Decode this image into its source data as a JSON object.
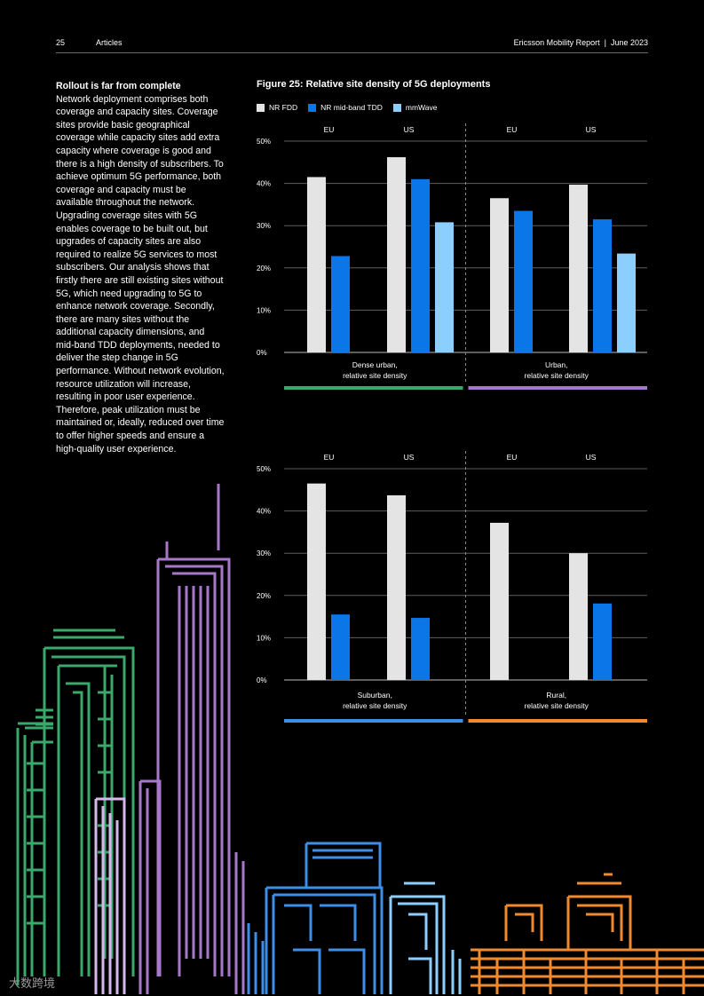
{
  "header": {
    "page_number": "25",
    "section": "Articles",
    "report": "Ericsson Mobility Report  |  June 2023"
  },
  "article": {
    "heading": "Rollout is far from complete",
    "body": "Network deployment comprises both coverage and capacity sites. Coverage sites provide basic geographical coverage while capacity sites add extra capacity where coverage is good and there is a high density of subscribers. To achieve optimum 5G performance, both coverage and capacity must be available throughout the network. Upgrading coverage sites with 5G enables coverage to be built out, but upgrades of capacity sites are also required to realize 5G services to most subscribers. Our analysis shows that firstly there are still existing sites without 5G, which need upgrading to 5G to enhance network coverage. Secondly, there are many sites without the additional capacity dimensions, and mid-band TDD deployments, needed to deliver the step change in 5G performance. Without network evolution, resource utilization will increase, resulting in poor user experience. Therefore, peak utilization must be maintained or, ideally, reduced over time to offer higher speeds and ensure a high-quality user experience."
  },
  "figure": {
    "title": "Figure 25: Relative site density of 5G deployments"
  },
  "legend": [
    {
      "label": "NR FDD",
      "color": "#e4e4e4"
    },
    {
      "label": "NR mid-band TDD",
      "color": "#0a76e8"
    },
    {
      "label": "mmWave",
      "color": "#8ccfff"
    }
  ],
  "chart_data": [
    {
      "type": "bar",
      "y_ticks": [
        "0%",
        "10%",
        "20%",
        "30%",
        "40%",
        "50%"
      ],
      "ylim": [
        0,
        50
      ],
      "panels": [
        {
          "category_label": [
            "Dense urban,",
            "relative site density"
          ],
          "underline_color": "#3aa86b",
          "groups": [
            {
              "name": "EU",
              "values": [
                41.5,
                22.8,
                null
              ]
            },
            {
              "name": "US",
              "values": [
                46.2,
                41.0,
                30.8
              ]
            }
          ]
        },
        {
          "category_label": [
            "Urban,",
            "relative site density"
          ],
          "underline_color": "#a777c9",
          "groups": [
            {
              "name": "EU",
              "values": [
                36.5,
                33.5,
                null
              ]
            },
            {
              "name": "US",
              "values": [
                39.7,
                31.5,
                23.4
              ]
            }
          ]
        }
      ]
    },
    {
      "type": "bar",
      "y_ticks": [
        "0%",
        "10%",
        "20%",
        "30%",
        "40%",
        "50%"
      ],
      "ylim": [
        0,
        50
      ],
      "panels": [
        {
          "category_label": [
            "Suburban,",
            "relative site density"
          ],
          "underline_color": "#3e8ee8",
          "groups": [
            {
              "name": "EU",
              "values": [
                46.5,
                15.5,
                null
              ]
            },
            {
              "name": "US",
              "values": [
                43.7,
                14.7,
                null
              ]
            }
          ]
        },
        {
          "category_label": [
            "Rural,",
            "relative site density"
          ],
          "underline_color": "#f08a2c",
          "groups": [
            {
              "name": "EU",
              "values": [
                37.2,
                null,
                null
              ]
            },
            {
              "name": "US",
              "values": [
                30.0,
                18.1,
                null
              ]
            }
          ]
        }
      ]
    }
  ],
  "watermark": "大数跨境"
}
